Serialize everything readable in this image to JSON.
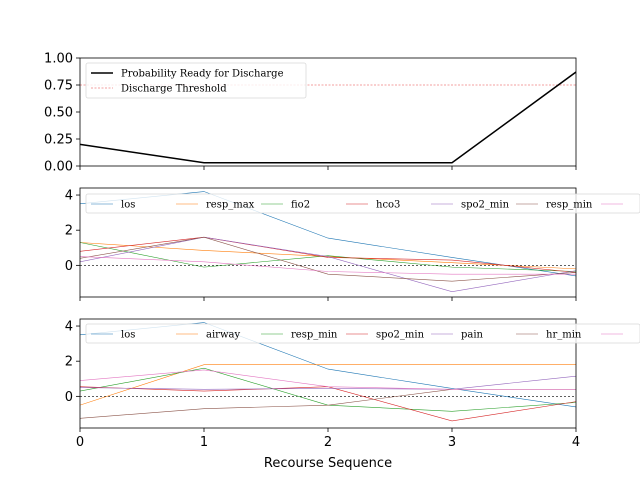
{
  "chart_data": [
    {
      "type": "line",
      "x": [
        0,
        1,
        2,
        3,
        4
      ],
      "ylim": [
        0,
        1
      ],
      "yticks": [
        "0.00",
        "0.25",
        "0.50",
        "0.75",
        "1.00"
      ],
      "xticks": [],
      "legend_position": "top-left",
      "series": [
        {
          "name": "Probability Ready for Discharge",
          "color": "#000000",
          "values": [
            0.2,
            0.03,
            0.03,
            0.03,
            0.87
          ]
        }
      ],
      "threshold": {
        "name": "Discharge Threshold",
        "value": 0.75,
        "color": "#f08080"
      }
    },
    {
      "type": "line",
      "x": [
        0,
        1,
        2,
        3,
        4
      ],
      "ylim": [
        -1.8,
        4.4
      ],
      "yticks": [
        "0",
        "2",
        "4"
      ],
      "xticks": [],
      "legend_position": "top",
      "zero_line": true,
      "series": [
        {
          "name": "los",
          "color": "#1f77b4",
          "values": [
            3.5,
            4.2,
            1.55,
            0.45,
            -0.6
          ]
        },
        {
          "name": "resp_max",
          "color": "#ff7f0e",
          "values": [
            1.3,
            0.85,
            0.5,
            0.15,
            -0.2
          ]
        },
        {
          "name": "fio2",
          "color": "#2ca02c",
          "values": [
            1.3,
            -0.1,
            0.55,
            -0.1,
            -0.35
          ]
        },
        {
          "name": "hco3",
          "color": "#d62728",
          "values": [
            0.8,
            1.6,
            0.45,
            0.3,
            -0.4
          ]
        },
        {
          "name": "spo2_min",
          "color": "#9467bd",
          "values": [
            0.2,
            1.6,
            0.5,
            -1.5,
            -0.3
          ]
        },
        {
          "name": "resp_min",
          "color": "#8c564b",
          "values": [
            0.4,
            1.6,
            -0.5,
            -0.9,
            -0.4
          ]
        },
        {
          "name": "",
          "color": "#e377c2",
          "values": [
            0.5,
            0.2,
            -0.35,
            -0.5,
            -0.5
          ]
        }
      ]
    },
    {
      "type": "line",
      "x": [
        0,
        1,
        2,
        3,
        4
      ],
      "ylim": [
        -1.8,
        4.4
      ],
      "yticks": [
        "0",
        "2",
        "4"
      ],
      "xticks": [
        "0",
        "1",
        "2",
        "3",
        "4"
      ],
      "xlabel": "Recourse Sequence",
      "legend_position": "top",
      "zero_line": true,
      "series": [
        {
          "name": "los",
          "color": "#1f77b4",
          "values": [
            3.5,
            4.2,
            1.55,
            0.45,
            -0.6
          ]
        },
        {
          "name": "airway",
          "color": "#ff7f0e",
          "values": [
            -0.5,
            1.8,
            1.8,
            1.8,
            1.8
          ]
        },
        {
          "name": "resp_min",
          "color": "#2ca02c",
          "values": [
            0.3,
            1.6,
            -0.5,
            -0.85,
            -0.35
          ]
        },
        {
          "name": "spo2_min",
          "color": "#d62728",
          "values": [
            0.55,
            0.3,
            0.55,
            -1.4,
            -0.3
          ]
        },
        {
          "name": "pain",
          "color": "#9467bd",
          "values": [
            0.5,
            0.4,
            0.45,
            0.4,
            1.15
          ]
        },
        {
          "name": "hr_min",
          "color": "#8c564b",
          "values": [
            -1.25,
            -0.7,
            -0.5,
            0.4,
            0.4
          ]
        },
        {
          "name": "",
          "color": "#e377c2",
          "values": [
            0.9,
            1.5,
            0.55,
            0.4,
            0.4
          ]
        }
      ]
    }
  ]
}
